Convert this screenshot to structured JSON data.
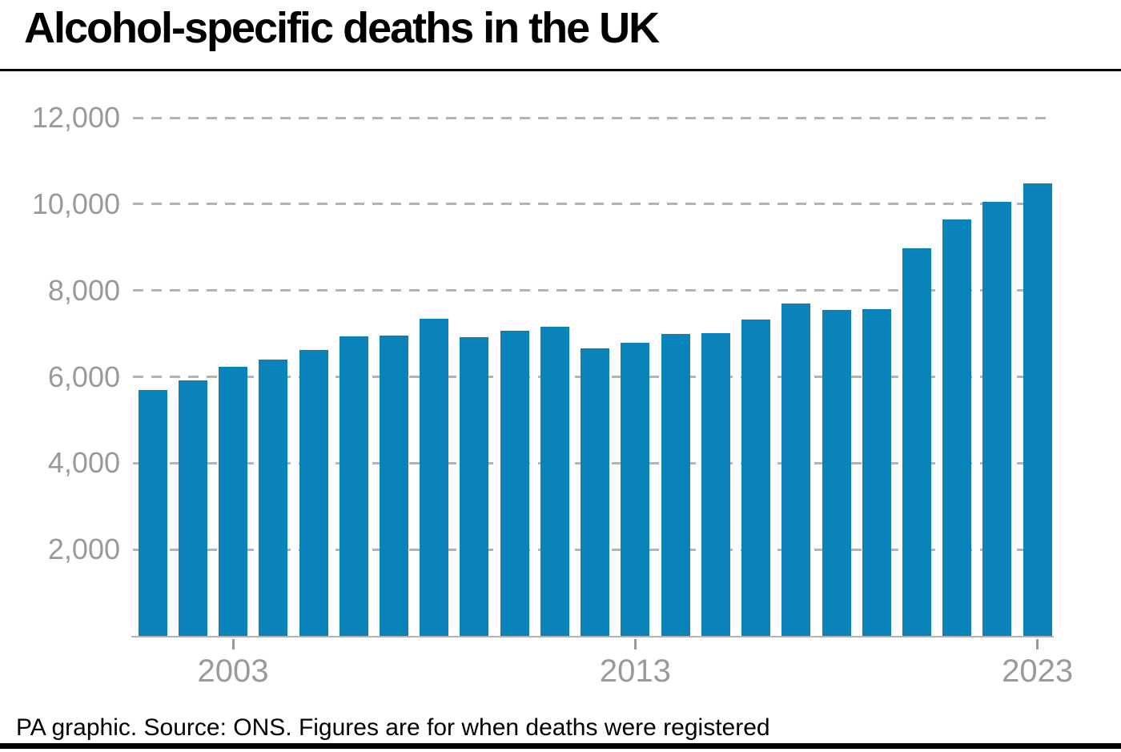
{
  "title": "Alcohol-specific deaths in the UK",
  "footer": {
    "credit": "PA graphic. Source: ONS. Figures are for when deaths were registered"
  },
  "colors": {
    "bar": "#0a82ba",
    "axis_text": "#9a9a9a",
    "gridline": "#b3b3b3",
    "rule": "#000000",
    "background": "#ffffff"
  },
  "chart_data": {
    "type": "bar",
    "title": "Alcohol-specific deaths in the UK",
    "series_name": "Alcohol-specific deaths (UK, registered)",
    "xlabel": "",
    "ylabel": "",
    "x": [
      2001,
      2002,
      2003,
      2004,
      2005,
      2006,
      2007,
      2008,
      2009,
      2010,
      2011,
      2012,
      2013,
      2014,
      2015,
      2016,
      2017,
      2018,
      2019,
      2020,
      2021,
      2022,
      2023
    ],
    "values": [
      5690,
      5910,
      6240,
      6390,
      6620,
      6940,
      6950,
      7340,
      6910,
      7070,
      7160,
      6650,
      6790,
      7000,
      7010,
      7330,
      7700,
      7550,
      7565,
      8974,
      9641,
      10048,
      10473
    ],
    "ylim": [
      0,
      12000
    ],
    "yticks": [
      {
        "value": 2000,
        "label": "2,000"
      },
      {
        "value": 4000,
        "label": "4,000"
      },
      {
        "value": 6000,
        "label": "6,000"
      },
      {
        "value": 8000,
        "label": "8,000"
      },
      {
        "value": 10000,
        "label": "10,000"
      },
      {
        "value": 12000,
        "label": "12,000"
      }
    ],
    "xticks": [
      {
        "value": 2003,
        "label": "2003"
      },
      {
        "value": 2013,
        "label": "2013"
      },
      {
        "value": 2023,
        "label": "2023"
      }
    ],
    "grid": "horizontal-dashed",
    "legend": "none"
  }
}
